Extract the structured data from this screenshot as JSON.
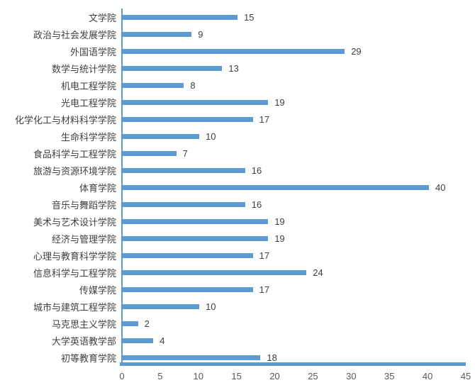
{
  "chart_data": {
    "type": "bar",
    "orientation": "horizontal",
    "title": "",
    "xlabel": "",
    "ylabel": "",
    "legend": "none",
    "grid": false,
    "data_labels": true,
    "categories": [
      "文学院",
      "政治与社会发展学院",
      "外国语学院",
      "数学与统计学院",
      "机电工程学院",
      "光电工程学院",
      "化学化工与材料科学学院",
      "生命科学学院",
      "食品科学与工程学院",
      "旅游与资源环境学院",
      "体育学院",
      "音乐与舞蹈学院",
      "美术与艺术设计学院",
      "经济与管理学院",
      "心理与教育科学学院",
      "信息科学与工程学院",
      "传媒学院",
      "城市与建筑工程学院",
      "马克思主义学院",
      "大学英语教学部",
      "初等教育学院"
    ],
    "values": [
      15,
      9,
      29,
      13,
      8,
      19,
      17,
      10,
      7,
      16,
      40,
      16,
      19,
      19,
      17,
      24,
      17,
      10,
      2,
      4,
      18
    ],
    "xlim": [
      0,
      45
    ],
    "x_ticks": [
      0,
      5,
      10,
      15,
      20,
      25,
      30,
      35,
      40,
      45
    ],
    "colors": {
      "bar": "#5b9bd5",
      "axis": "#5b9bd5",
      "value_label": "#404040",
      "category_label": "#3f3f3f",
      "tick_label": "#595959",
      "background": "#ffffff"
    }
  }
}
